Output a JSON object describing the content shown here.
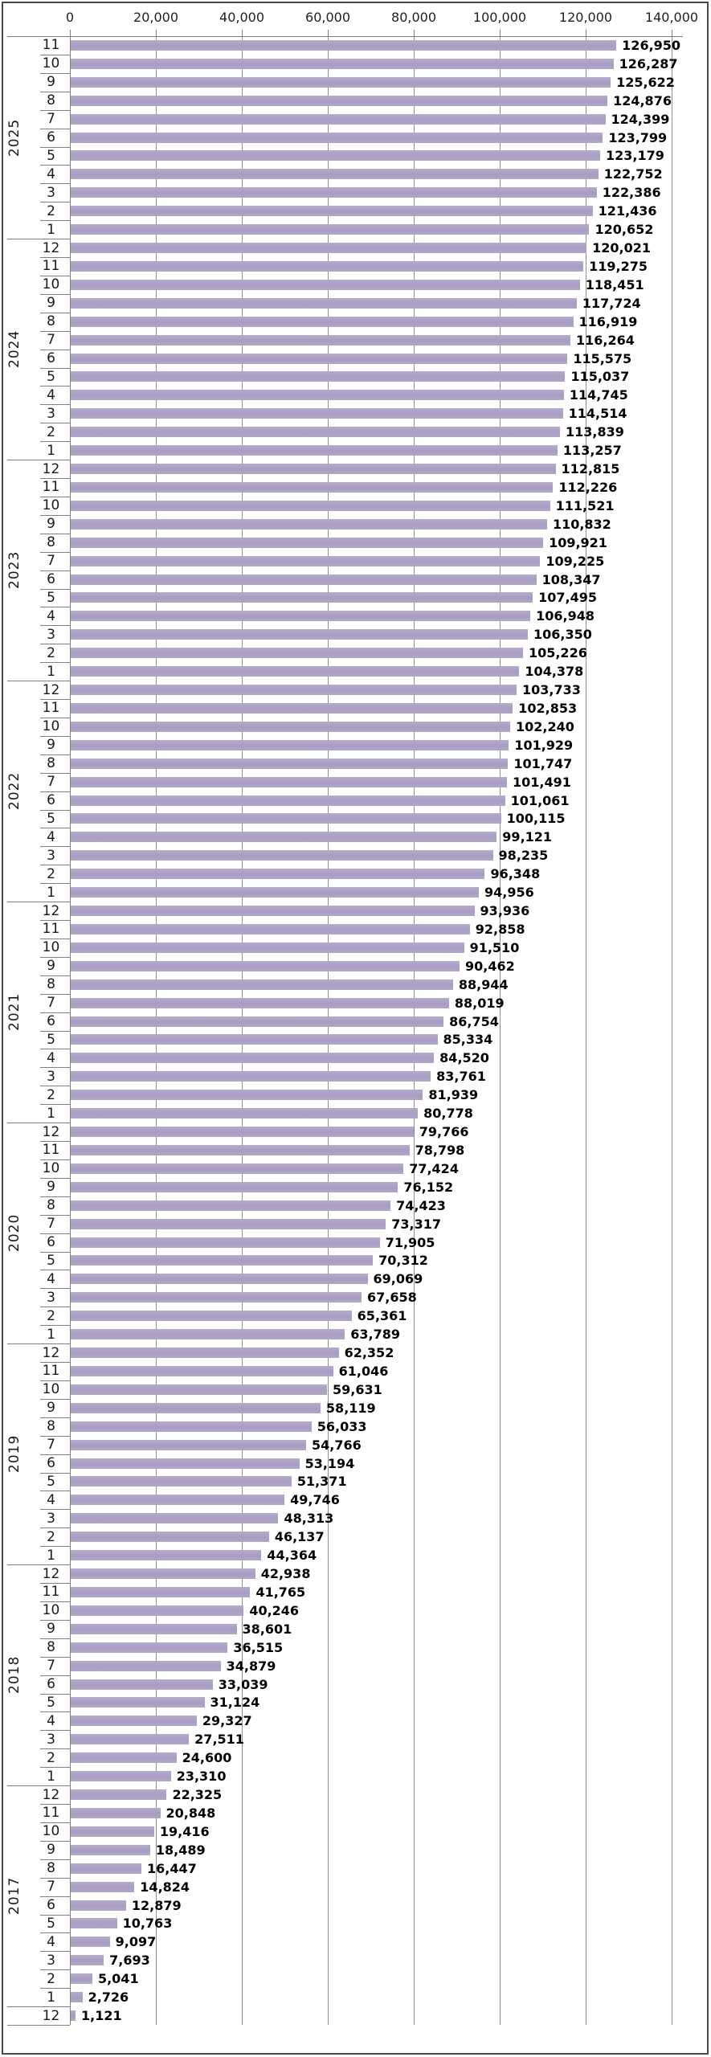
{
  "chart_data": {
    "type": "bar",
    "orientation": "horizontal",
    "title": "",
    "xlabel": "",
    "ylabel": "",
    "xlim": [
      0,
      140000
    ],
    "grid": true,
    "legend": null,
    "bar_color": "#aca0c4",
    "x_ticks": [
      {
        "value": 0,
        "label": "0"
      },
      {
        "value": 20000,
        "label": "20,000"
      },
      {
        "value": 40000,
        "label": "40,000"
      },
      {
        "value": 60000,
        "label": "60,000"
      },
      {
        "value": 80000,
        "label": "80,000"
      },
      {
        "value": 100000,
        "label": "100,000"
      },
      {
        "value": 120000,
        "label": "120,000"
      },
      {
        "value": 140000,
        "label": "140,000"
      }
    ],
    "groups": [
      {
        "year": "2025",
        "rows": [
          [
            "11",
            126950,
            "126,950"
          ],
          [
            "10",
            126287,
            "126,287"
          ],
          [
            "9",
            125622,
            "125,622"
          ],
          [
            "8",
            124876,
            "124,876"
          ],
          [
            "7",
            124399,
            "124,399"
          ],
          [
            "6",
            123799,
            "123,799"
          ],
          [
            "5",
            123179,
            "123,179"
          ],
          [
            "4",
            122752,
            "122,752"
          ],
          [
            "3",
            122386,
            "122,386"
          ],
          [
            "2",
            121436,
            "121,436"
          ],
          [
            "1",
            120652,
            "120,652"
          ]
        ]
      },
      {
        "year": "2024",
        "rows": [
          [
            "12",
            120021,
            "120,021"
          ],
          [
            "11",
            119275,
            "119,275"
          ],
          [
            "10",
            118451,
            "118,451"
          ],
          [
            "9",
            117724,
            "117,724"
          ],
          [
            "8",
            116919,
            "116,919"
          ],
          [
            "7",
            116264,
            "116,264"
          ],
          [
            "6",
            115575,
            "115,575"
          ],
          [
            "5",
            115037,
            "115,037"
          ],
          [
            "4",
            114745,
            "114,745"
          ],
          [
            "3",
            114514,
            "114,514"
          ],
          [
            "2",
            113839,
            "113,839"
          ],
          [
            "1",
            113257,
            "113,257"
          ]
        ]
      },
      {
        "year": "2023",
        "rows": [
          [
            "12",
            112815,
            "112,815"
          ],
          [
            "11",
            112226,
            "112,226"
          ],
          [
            "10",
            111521,
            "111,521"
          ],
          [
            "9",
            110832,
            "110,832"
          ],
          [
            "8",
            109921,
            "109,921"
          ],
          [
            "7",
            109225,
            "109,225"
          ],
          [
            "6",
            108347,
            "108,347"
          ],
          [
            "5",
            107495,
            "107,495"
          ],
          [
            "4",
            106948,
            "106,948"
          ],
          [
            "3",
            106350,
            "106,350"
          ],
          [
            "2",
            105226,
            "105,226"
          ],
          [
            "1",
            104378,
            "104,378"
          ]
        ]
      },
      {
        "year": "2022",
        "rows": [
          [
            "12",
            103733,
            "103,733"
          ],
          [
            "11",
            102853,
            "102,853"
          ],
          [
            "10",
            102240,
            "102,240"
          ],
          [
            "9",
            101929,
            "101,929"
          ],
          [
            "8",
            101747,
            "101,747"
          ],
          [
            "7",
            101491,
            "101,491"
          ],
          [
            "6",
            101061,
            "101,061"
          ],
          [
            "5",
            100115,
            "100,115"
          ],
          [
            "4",
            99121,
            "99,121"
          ],
          [
            "3",
            98235,
            "98,235"
          ],
          [
            "2",
            96348,
            "96,348"
          ],
          [
            "1",
            94956,
            "94,956"
          ]
        ]
      },
      {
        "year": "2021",
        "rows": [
          [
            "12",
            93936,
            "93,936"
          ],
          [
            "11",
            92858,
            "92,858"
          ],
          [
            "10",
            91510,
            "91,510"
          ],
          [
            "9",
            90462,
            "90,462"
          ],
          [
            "8",
            88944,
            "88,944"
          ],
          [
            "7",
            88019,
            "88,019"
          ],
          [
            "6",
            86754,
            "86,754"
          ],
          [
            "5",
            85334,
            "85,334"
          ],
          [
            "4",
            84520,
            "84,520"
          ],
          [
            "3",
            83761,
            "83,761"
          ],
          [
            "2",
            81939,
            "81,939"
          ],
          [
            "1",
            80778,
            "80,778"
          ]
        ]
      },
      {
        "year": "2020",
        "rows": [
          [
            "12",
            79766,
            "79,766"
          ],
          [
            "11",
            78798,
            "78,798"
          ],
          [
            "10",
            77424,
            "77,424"
          ],
          [
            "9",
            76152,
            "76,152"
          ],
          [
            "8",
            74423,
            "74,423"
          ],
          [
            "7",
            73317,
            "73,317"
          ],
          [
            "6",
            71905,
            "71,905"
          ],
          [
            "5",
            70312,
            "70,312"
          ],
          [
            "4",
            69069,
            "69,069"
          ],
          [
            "3",
            67658,
            "67,658"
          ],
          [
            "2",
            65361,
            "65,361"
          ],
          [
            "1",
            63789,
            "63,789"
          ]
        ]
      },
      {
        "year": "2019",
        "rows": [
          [
            "12",
            62352,
            "62,352"
          ],
          [
            "11",
            61046,
            "61,046"
          ],
          [
            "10",
            59631,
            "59,631"
          ],
          [
            "9",
            58119,
            "58,119"
          ],
          [
            "8",
            56033,
            "56,033"
          ],
          [
            "7",
            54766,
            "54,766"
          ],
          [
            "6",
            53194,
            "53,194"
          ],
          [
            "5",
            51371,
            "51,371"
          ],
          [
            "4",
            49746,
            "49,746"
          ],
          [
            "3",
            48313,
            "48,313"
          ],
          [
            "2",
            46137,
            "46,137"
          ],
          [
            "1",
            44364,
            "44,364"
          ]
        ]
      },
      {
        "year": "2018",
        "rows": [
          [
            "12",
            42938,
            "42,938"
          ],
          [
            "11",
            41765,
            "41,765"
          ],
          [
            "10",
            40246,
            "40,246"
          ],
          [
            "9",
            38601,
            "38,601"
          ],
          [
            "8",
            36515,
            "36,515"
          ],
          [
            "7",
            34879,
            "34,879"
          ],
          [
            "6",
            33039,
            "33,039"
          ],
          [
            "5",
            31124,
            "31,124"
          ],
          [
            "4",
            29327,
            "29,327"
          ],
          [
            "3",
            27511,
            "27,511"
          ],
          [
            "2",
            24600,
            "24,600"
          ],
          [
            "1",
            23310,
            "23,310"
          ]
        ]
      },
      {
        "year": "2017",
        "rows": [
          [
            "12",
            22325,
            "22,325"
          ],
          [
            "11",
            20848,
            "20,848"
          ],
          [
            "10",
            19416,
            "19,416"
          ],
          [
            "9",
            18489,
            "18,489"
          ],
          [
            "8",
            16447,
            "16,447"
          ],
          [
            "7",
            14824,
            "14,824"
          ],
          [
            "6",
            12879,
            "12,879"
          ],
          [
            "5",
            10763,
            "10,763"
          ],
          [
            "4",
            9097,
            "9,097"
          ],
          [
            "3",
            7693,
            "7,693"
          ],
          [
            "2",
            5041,
            "5,041"
          ],
          [
            "1",
            2726,
            "2,726"
          ]
        ]
      },
      {
        "year": "",
        "rows": [
          [
            "12",
            1121,
            "1,121"
          ]
        ]
      }
    ]
  }
}
